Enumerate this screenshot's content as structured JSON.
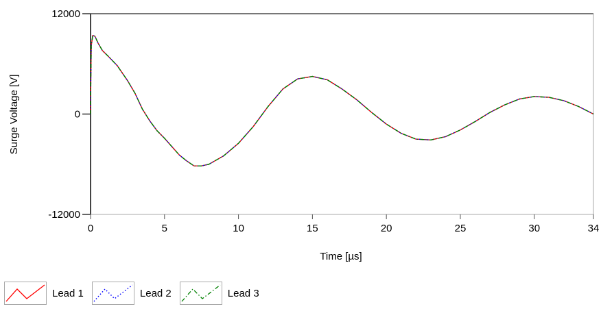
{
  "chart_data": {
    "type": "line",
    "title": "",
    "xlabel": "Time [µs]",
    "ylabel": "Surge Voltage [V]",
    "xlim": [
      0,
      34
    ],
    "ylim": [
      -12000,
      12000
    ],
    "x_ticks": [
      0,
      5,
      10,
      15,
      20,
      25,
      30,
      34
    ],
    "x_tick_labels": [
      "0",
      "5",
      "10",
      "15",
      "20",
      "25",
      "30",
      "34"
    ],
    "y_ticks": [
      12000,
      0,
      -12000
    ],
    "y_tick_labels": [
      "12000",
      "0",
      "-12000"
    ],
    "grid": false,
    "legend_position": "bottom-left",
    "series": [
      {
        "name": "Lead 1",
        "color": "#ff0000",
        "style": "solid",
        "points": [
          [
            0.0,
            0
          ],
          [
            0.02,
            4000
          ],
          [
            0.05,
            8200
          ],
          [
            0.15,
            9400
          ],
          [
            0.3,
            9300
          ],
          [
            0.5,
            8500
          ],
          [
            0.8,
            7600
          ],
          [
            1.2,
            6900
          ],
          [
            1.8,
            5800
          ],
          [
            2.5,
            4000
          ],
          [
            3.0,
            2500
          ],
          [
            3.5,
            600
          ],
          [
            4.0,
            -800
          ],
          [
            4.5,
            -2000
          ],
          [
            5.0,
            -2900
          ],
          [
            5.5,
            -3900
          ],
          [
            6.0,
            -4900
          ],
          [
            6.5,
            -5600
          ],
          [
            7.0,
            -6200
          ],
          [
            7.5,
            -6200
          ],
          [
            8.0,
            -6000
          ],
          [
            9.0,
            -5000
          ],
          [
            10.0,
            -3500
          ],
          [
            11.0,
            -1500
          ],
          [
            12.0,
            900
          ],
          [
            13.0,
            3000
          ],
          [
            14.0,
            4200
          ],
          [
            15.0,
            4500
          ],
          [
            16.0,
            4100
          ],
          [
            17.0,
            3000
          ],
          [
            18.0,
            1700
          ],
          [
            19.0,
            200
          ],
          [
            20.0,
            -1200
          ],
          [
            21.0,
            -2300
          ],
          [
            22.0,
            -3000
          ],
          [
            23.0,
            -3100
          ],
          [
            24.0,
            -2700
          ],
          [
            25.0,
            -1900
          ],
          [
            26.0,
            -900
          ],
          [
            27.0,
            200
          ],
          [
            28.0,
            1100
          ],
          [
            29.0,
            1800
          ],
          [
            30.0,
            2100
          ],
          [
            31.0,
            2000
          ],
          [
            32.0,
            1600
          ],
          [
            33.0,
            900
          ],
          [
            34.0,
            0
          ]
        ]
      },
      {
        "name": "Lead 2",
        "color": "#0000ff",
        "style": "dotted",
        "points": [
          [
            0.0,
            0
          ],
          [
            0.02,
            4000
          ],
          [
            0.05,
            8200
          ],
          [
            0.15,
            9400
          ],
          [
            0.3,
            9300
          ],
          [
            0.5,
            8500
          ],
          [
            0.8,
            7600
          ],
          [
            1.2,
            6900
          ],
          [
            1.8,
            5800
          ],
          [
            2.5,
            4000
          ],
          [
            3.0,
            2500
          ],
          [
            3.5,
            600
          ],
          [
            4.0,
            -800
          ],
          [
            4.5,
            -2000
          ],
          [
            5.0,
            -2900
          ],
          [
            5.5,
            -3900
          ],
          [
            6.0,
            -4900
          ],
          [
            6.5,
            -5600
          ],
          [
            7.0,
            -6200
          ],
          [
            7.5,
            -6200
          ],
          [
            8.0,
            -6000
          ],
          [
            9.0,
            -5000
          ],
          [
            10.0,
            -3500
          ],
          [
            11.0,
            -1500
          ],
          [
            12.0,
            900
          ],
          [
            13.0,
            3000
          ],
          [
            14.0,
            4200
          ],
          [
            15.0,
            4500
          ],
          [
            16.0,
            4100
          ],
          [
            17.0,
            3000
          ],
          [
            18.0,
            1700
          ],
          [
            19.0,
            200
          ],
          [
            20.0,
            -1200
          ],
          [
            21.0,
            -2300
          ],
          [
            22.0,
            -3000
          ],
          [
            23.0,
            -3100
          ],
          [
            24.0,
            -2700
          ],
          [
            25.0,
            -1900
          ],
          [
            26.0,
            -900
          ],
          [
            27.0,
            200
          ],
          [
            28.0,
            1100
          ],
          [
            29.0,
            1800
          ],
          [
            30.0,
            2100
          ],
          [
            31.0,
            2000
          ],
          [
            32.0,
            1600
          ],
          [
            33.0,
            900
          ],
          [
            34.0,
            0
          ]
        ]
      },
      {
        "name": "Lead 3",
        "color": "#008000",
        "style": "dashdot",
        "points": [
          [
            0.0,
            0
          ],
          [
            0.02,
            4000
          ],
          [
            0.05,
            8200
          ],
          [
            0.15,
            9400
          ],
          [
            0.3,
            9300
          ],
          [
            0.5,
            8500
          ],
          [
            0.8,
            7600
          ],
          [
            1.2,
            6900
          ],
          [
            1.8,
            5800
          ],
          [
            2.5,
            4000
          ],
          [
            3.0,
            2500
          ],
          [
            3.5,
            600
          ],
          [
            4.0,
            -800
          ],
          [
            4.5,
            -2000
          ],
          [
            5.0,
            -2900
          ],
          [
            5.5,
            -3900
          ],
          [
            6.0,
            -4900
          ],
          [
            6.5,
            -5600
          ],
          [
            7.0,
            -6200
          ],
          [
            7.5,
            -6200
          ],
          [
            8.0,
            -6000
          ],
          [
            9.0,
            -5000
          ],
          [
            10.0,
            -3500
          ],
          [
            11.0,
            -1500
          ],
          [
            12.0,
            900
          ],
          [
            13.0,
            3000
          ],
          [
            14.0,
            4200
          ],
          [
            15.0,
            4500
          ],
          [
            16.0,
            4100
          ],
          [
            17.0,
            3000
          ],
          [
            18.0,
            1700
          ],
          [
            19.0,
            200
          ],
          [
            20.0,
            -1200
          ],
          [
            21.0,
            -2300
          ],
          [
            22.0,
            -3000
          ],
          [
            23.0,
            -3100
          ],
          [
            24.0,
            -2700
          ],
          [
            25.0,
            -1900
          ],
          [
            26.0,
            -900
          ],
          [
            27.0,
            200
          ],
          [
            28.0,
            1100
          ],
          [
            29.0,
            1800
          ],
          [
            30.0,
            2100
          ],
          [
            31.0,
            2000
          ],
          [
            32.0,
            1600
          ],
          [
            33.0,
            900
          ],
          [
            34.0,
            0
          ]
        ]
      }
    ]
  }
}
